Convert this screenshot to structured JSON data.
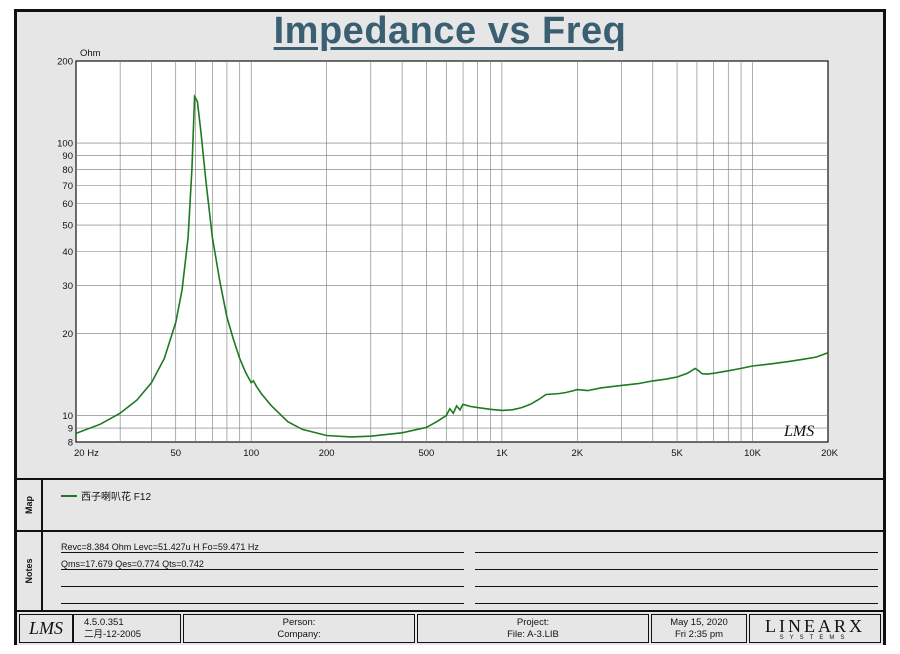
{
  "chart_data": {
    "type": "line",
    "title": "Impedance vs Freq",
    "yunit": "Ohm",
    "xscale": "log",
    "yscale": "log",
    "xlim": [
      20,
      20000
    ],
    "ylim": [
      8,
      200
    ],
    "grid": true,
    "x_tick_labels": [
      {
        "value": 20,
        "label": "20  Hz"
      },
      {
        "value": 50,
        "label": "50"
      },
      {
        "value": 100,
        "label": "100"
      },
      {
        "value": 200,
        "label": "200"
      },
      {
        "value": 500,
        "label": "500"
      },
      {
        "value": 1000,
        "label": "1K"
      },
      {
        "value": 2000,
        "label": "2K"
      },
      {
        "value": 5000,
        "label": "5K"
      },
      {
        "value": 10000,
        "label": "10K"
      },
      {
        "value": 20000,
        "label": "20K"
      }
    ],
    "y_tick_labels": [
      {
        "value": 200,
        "label": "200"
      },
      {
        "value": 100,
        "label": "100"
      },
      {
        "value": 90,
        "label": "90"
      },
      {
        "value": 80,
        "label": "80"
      },
      {
        "value": 70,
        "label": "70"
      },
      {
        "value": 60,
        "label": "60"
      },
      {
        "value": 50,
        "label": "50"
      },
      {
        "value": 40,
        "label": "40"
      },
      {
        "value": 30,
        "label": "30"
      },
      {
        "value": 20,
        "label": "20"
      },
      {
        "value": 10,
        "label": "10"
      },
      {
        "value": 9,
        "label": "9"
      },
      {
        "value": 8,
        "label": "8"
      }
    ],
    "watermark": "LMS",
    "series": [
      {
        "name": "西子喇叭花 F12",
        "color": "#1e7a1e",
        "x": [
          20,
          25,
          30,
          35,
          40,
          45,
          50,
          53,
          56,
          58,
          59.47,
          61,
          63,
          66,
          70,
          75,
          80,
          85,
          90,
          95,
          100,
          102,
          105,
          110,
          120,
          140,
          160,
          200,
          250,
          300,
          400,
          500,
          550,
          600,
          620,
          640,
          660,
          680,
          700,
          750,
          800,
          900,
          1000,
          1100,
          1200,
          1300,
          1400,
          1500,
          1600,
          1700,
          1800,
          1900,
          2000,
          2200,
          2500,
          3000,
          3500,
          4000,
          4500,
          5000,
          5500,
          5900,
          6100,
          6300,
          6600,
          7000,
          8000,
          9000,
          10000,
          12000,
          14000,
          16000,
          18000,
          20000
        ],
        "y": [
          8.6,
          9.3,
          10.2,
          11.4,
          13.2,
          16.2,
          22,
          29,
          45,
          80,
          148,
          142,
          110,
          72,
          45,
          31,
          23,
          19,
          16.2,
          14.4,
          13.2,
          13.4,
          12.8,
          12.0,
          10.9,
          9.5,
          8.9,
          8.45,
          8.35,
          8.4,
          8.65,
          9.05,
          9.5,
          10.0,
          10.6,
          10.2,
          10.85,
          10.5,
          11.0,
          10.8,
          10.7,
          10.55,
          10.45,
          10.5,
          10.7,
          11.0,
          11.45,
          11.95,
          12.0,
          12.05,
          12.15,
          12.3,
          12.45,
          12.35,
          12.65,
          12.9,
          13.1,
          13.4,
          13.6,
          13.85,
          14.3,
          14.9,
          14.6,
          14.25,
          14.2,
          14.3,
          14.6,
          14.9,
          15.2,
          15.5,
          15.8,
          16.1,
          16.4,
          17.0
        ]
      }
    ]
  },
  "legend": {
    "label": "Map",
    "entry": "西子喇叭花 F12"
  },
  "notes": {
    "label": "Notes",
    "line1": "Revc=8.384 Ohm  Levc=51.427u H  Fo=59.471 Hz",
    "line2": "Qms=17.679  Qes=0.774  Qts=0.742"
  },
  "footer": {
    "logo": "LMS",
    "version": "4.5.0.351",
    "version_date": "二月-12-2005",
    "person_label": "Person:",
    "company_label": "Company:",
    "project_label": "Project:",
    "file": "File: A-3.LIB",
    "date": "May 15, 2020",
    "time": "Fri  2:35 pm",
    "brand": "LINEARX",
    "brand_sub": "SYSTEMS"
  }
}
